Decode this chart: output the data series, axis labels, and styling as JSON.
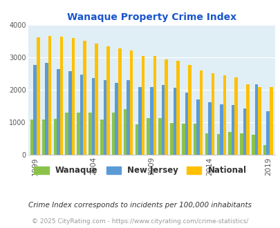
{
  "title": "Wanaque Property Crime Index",
  "years": [
    1999,
    2000,
    2001,
    2002,
    2003,
    2004,
    2005,
    2006,
    2007,
    2008,
    2009,
    2010,
    2011,
    2012,
    2013,
    2014,
    2015,
    2016,
    2017,
    2018,
    2019
  ],
  "wanaque": [
    1100,
    1100,
    1120,
    1300,
    1300,
    1300,
    1100,
    1310,
    1420,
    940,
    1130,
    1130,
    980,
    960,
    970,
    670,
    650,
    700,
    670,
    620,
    310
  ],
  "new_jersey": [
    2780,
    2830,
    2650,
    2580,
    2470,
    2370,
    2310,
    2220,
    2300,
    2100,
    2090,
    2150,
    2070,
    1920,
    1720,
    1620,
    1560,
    1540,
    1430,
    2180,
    1350
  ],
  "national": [
    3620,
    3660,
    3640,
    3600,
    3520,
    3440,
    3340,
    3280,
    3230,
    3050,
    3050,
    2950,
    2910,
    2770,
    2610,
    2510,
    2460,
    2390,
    2180,
    2100,
    2100
  ],
  "wanaque_color": "#8bc34a",
  "nj_color": "#5b9bd5",
  "national_color": "#ffc000",
  "plot_bg": "#e0eff5",
  "title_color": "#1a56cc",
  "subtitle": "Crime Index corresponds to incidents per 100,000 inhabitants",
  "footer": "© 2025 CityRating.com - https://www.cityrating.com/crime-statistics/",
  "ylim": [
    0,
    4000
  ],
  "yticks": [
    0,
    1000,
    2000,
    3000,
    4000
  ],
  "tick_years": [
    1999,
    2004,
    2009,
    2014,
    2019
  ]
}
